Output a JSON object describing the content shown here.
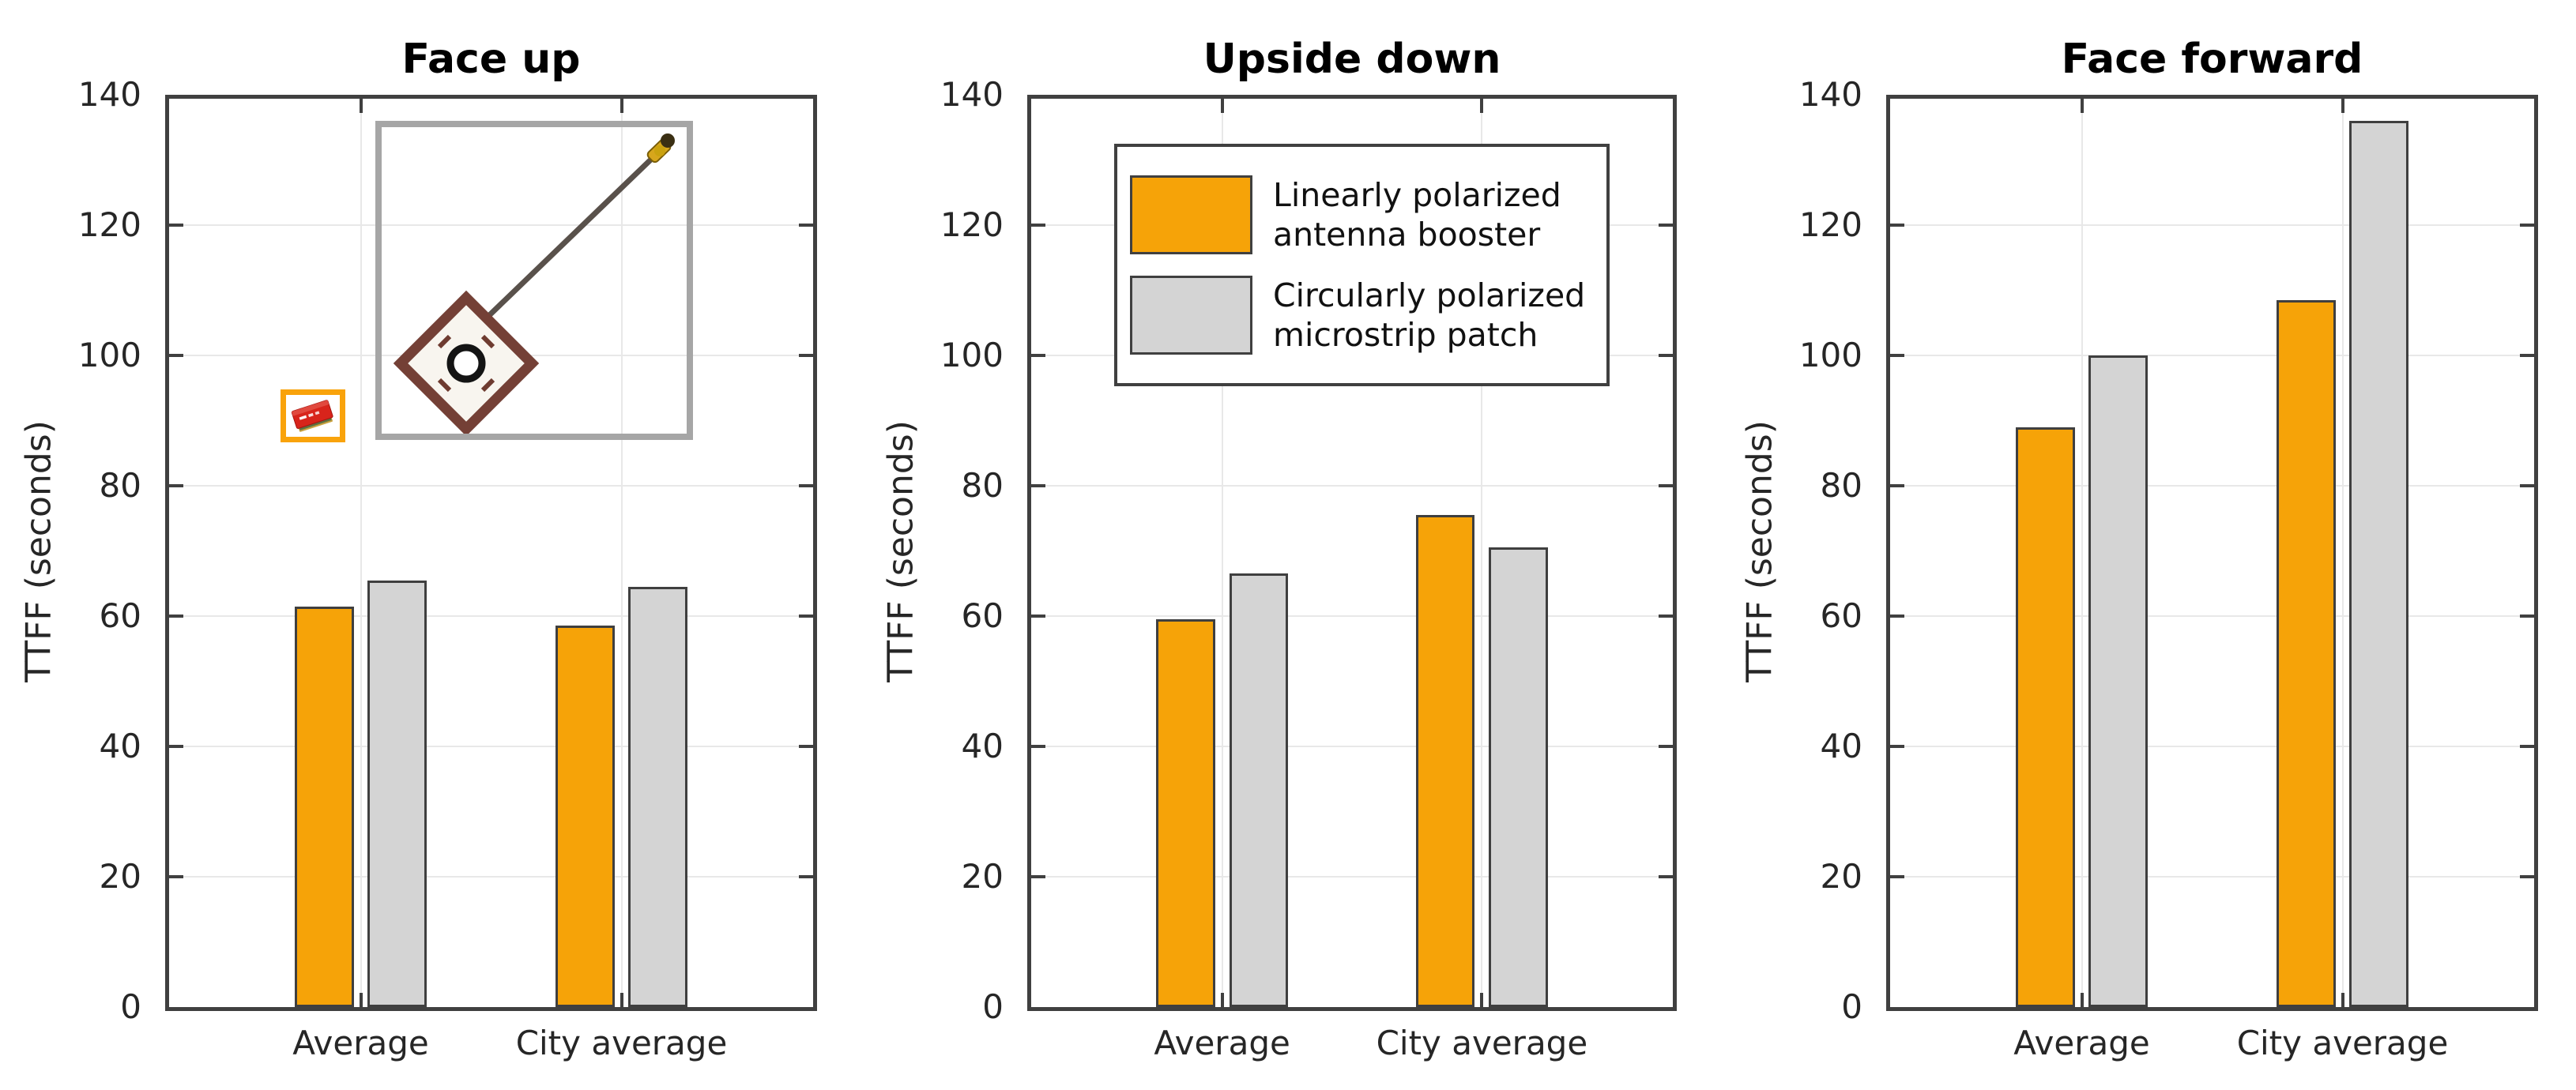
{
  "colors": {
    "background": "#ffffff",
    "series": [
      "#f6a308",
      "#d4d4d4"
    ],
    "bar_edge": "#3f3f3f",
    "axis_box": "#404040",
    "gridline": "#e8e8e8",
    "tick_label": "#262626",
    "title": "#000000",
    "inset_frame_gray": "#a6a6a6",
    "inset_frame_orange": "#f9a30b"
  },
  "legend": {
    "position": "top-left inside middle panel",
    "entries": [
      {
        "label": "Linearly polarized antenna booster",
        "label_lines": [
          "Linearly polarized",
          "antenna booster"
        ],
        "color": "#f6a308"
      },
      {
        "label": "Circularly polarized microstrip patch",
        "label_lines": [
          "Circularly polarized",
          "microstrip patch"
        ],
        "color": "#d4d4d4"
      }
    ]
  },
  "insets": [
    {
      "icon": "patch-antenna-photo-inset",
      "description": "circularly polarized microstrip patch antenna with coaxial cable and gold U.FL connector",
      "frame_color": "#a6a6a6"
    },
    {
      "icon": "antenna-booster-chip-photo-inset",
      "description": "linearly polarized SMD antenna booster chip",
      "frame_color": "#f9a30b"
    }
  ],
  "chart_data": [
    {
      "type": "bar",
      "title": "Face up",
      "xlabel": "",
      "ylabel": "TTFF (seconds)",
      "categories": [
        "Average",
        "City average"
      ],
      "series": [
        {
          "name": "Linearly polarized antenna booster",
          "values": [
            61.5,
            58.5
          ]
        },
        {
          "name": "Circularly polarized microstrip patch",
          "values": [
            65.5,
            64.5
          ]
        }
      ],
      "ylim": [
        0,
        140
      ],
      "ytick_step": 20,
      "grid": true,
      "legend_position": "none"
    },
    {
      "type": "bar",
      "title": "Upside down",
      "xlabel": "",
      "ylabel": "TTFF (seconds)",
      "categories": [
        "Average",
        "City average"
      ],
      "series": [
        {
          "name": "Linearly polarized antenna booster",
          "values": [
            59.5,
            75.5
          ]
        },
        {
          "name": "Circularly polarized microstrip patch",
          "values": [
            66.5,
            70.5
          ]
        }
      ],
      "ylim": [
        0,
        140
      ],
      "ytick_step": 20,
      "grid": true,
      "legend_position": "top-left"
    },
    {
      "type": "bar",
      "title": "Face forward",
      "xlabel": "",
      "ylabel": "TTFF (seconds)",
      "categories": [
        "Average",
        "City average"
      ],
      "series": [
        {
          "name": "Linearly polarized antenna booster",
          "values": [
            89,
            108.5
          ]
        },
        {
          "name": "Circularly polarized microstrip patch",
          "values": [
            100,
            136
          ]
        }
      ],
      "ylim": [
        0,
        140
      ],
      "ytick_step": 20,
      "grid": true,
      "legend_position": "none"
    }
  ]
}
